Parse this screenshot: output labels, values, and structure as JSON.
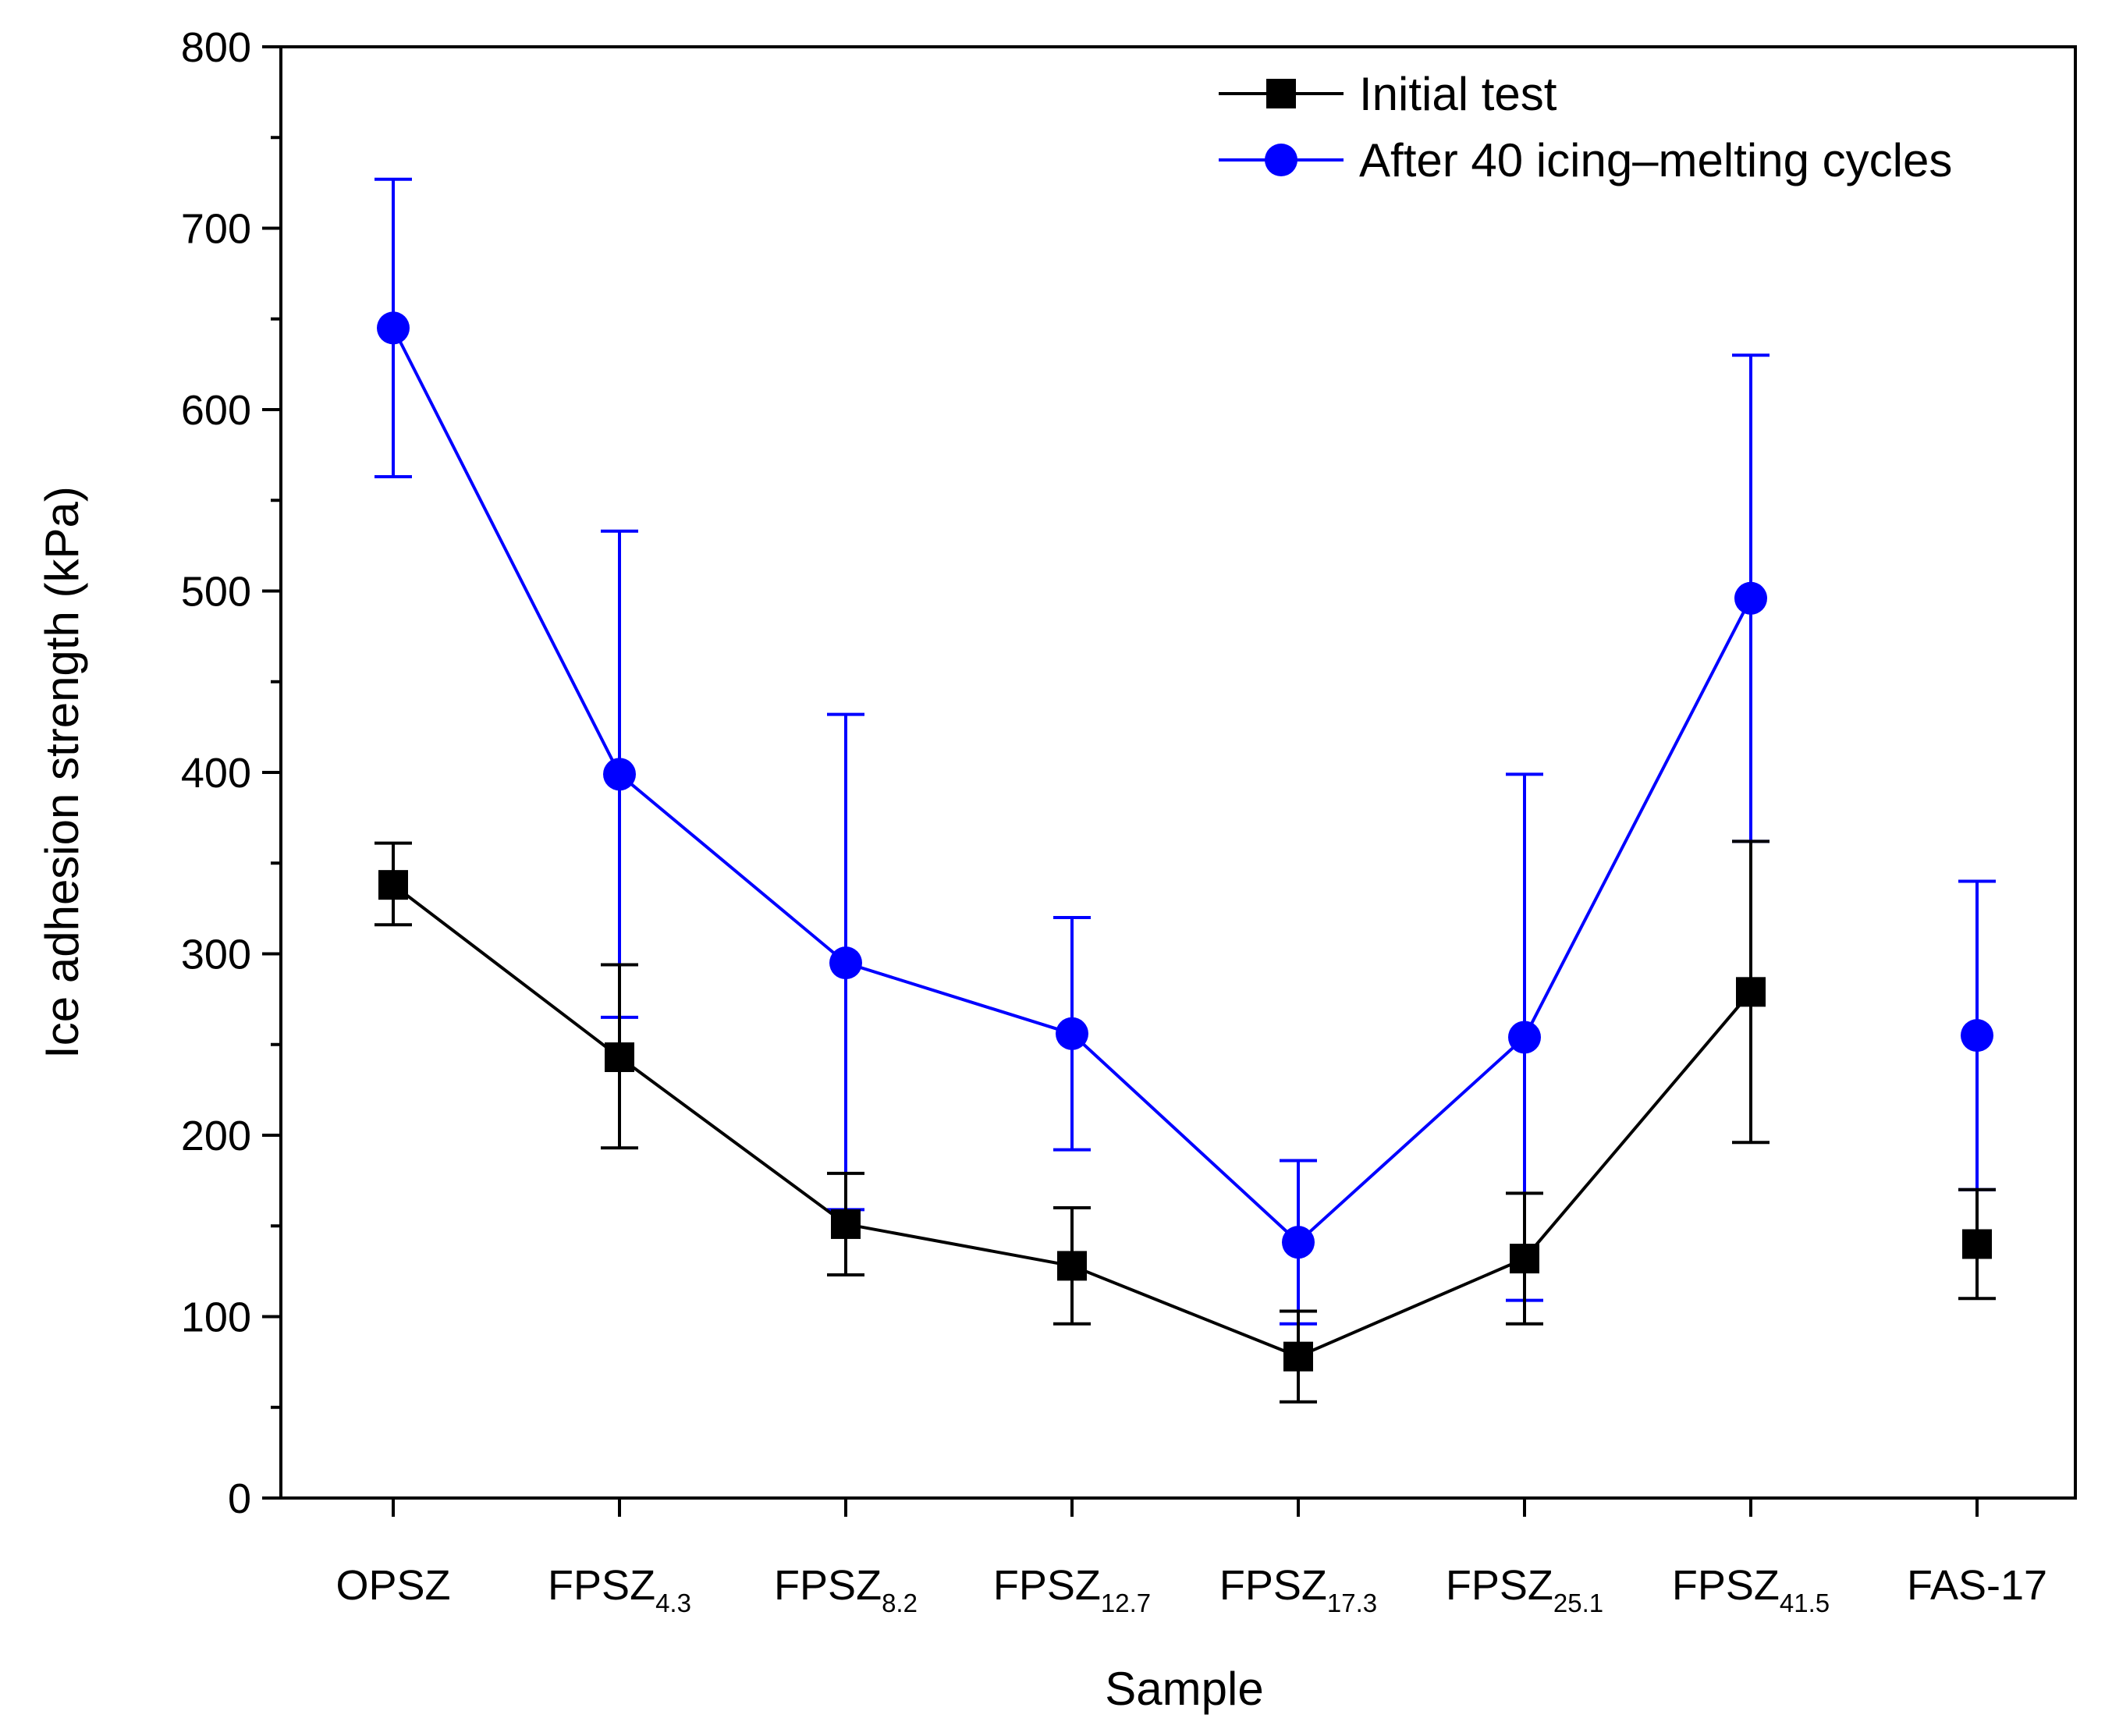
{
  "chart_data": {
    "type": "line",
    "title": "",
    "xlabel": "Sample",
    "ylabel": "Ice adhesion strength (kPa)",
    "ylim": [
      0,
      800
    ],
    "yticks": [
      "0",
      "100",
      "200",
      "300",
      "400",
      "500",
      "600",
      "700",
      "800"
    ],
    "categories": [
      {
        "main": "OPSZ",
        "sub": ""
      },
      {
        "main": "FPSZ",
        "sub": "4.3"
      },
      {
        "main": "FPSZ",
        "sub": "8.2"
      },
      {
        "main": "FPSZ",
        "sub": "12.7"
      },
      {
        "main": "FPSZ",
        "sub": "17.3"
      },
      {
        "main": "FPSZ",
        "sub": "25.1"
      },
      {
        "main": "FPSZ",
        "sub": "41.5"
      },
      {
        "main": "FAS-17",
        "sub": ""
      }
    ],
    "connected_points": 7,
    "legend_position": "top-right",
    "series": [
      {
        "name": "Initial test",
        "color": "#000000",
        "marker": "square",
        "values": [
          338,
          243,
          151,
          128,
          78,
          132,
          279,
          140
        ],
        "err_low": [
          22,
          50,
          28,
          32,
          25,
          36,
          83,
          30
        ],
        "err_high": [
          23,
          51,
          28,
          32,
          25,
          36,
          83,
          30
        ]
      },
      {
        "name": "After 40 icing–melting cycles",
        "color": "#0000ff",
        "marker": "circle",
        "values": [
          645,
          399,
          295,
          256,
          141,
          254,
          496,
          255
        ],
        "err_low": [
          82,
          134,
          136,
          64,
          45,
          145,
          134,
          85
        ],
        "err_high": [
          82,
          134,
          137,
          64,
          45,
          145,
          134,
          85
        ]
      }
    ]
  }
}
